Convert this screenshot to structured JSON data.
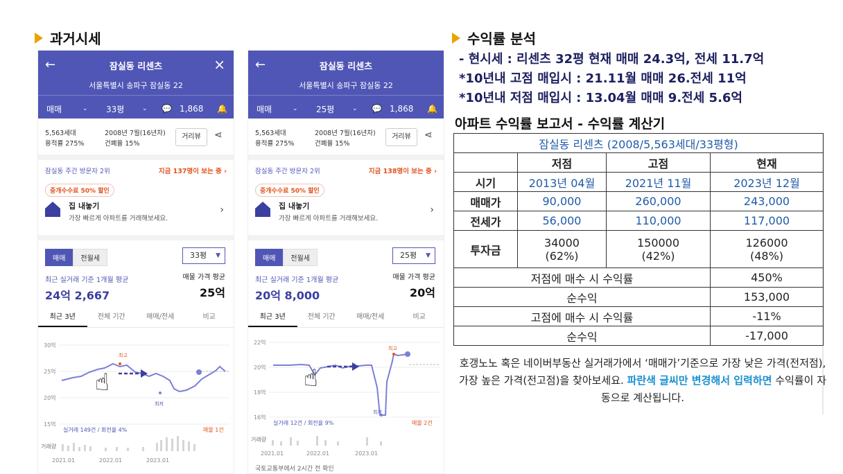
{
  "left_section": {
    "title": "과거시세"
  },
  "right_section": {
    "title": "수익률 분석",
    "bullets": [
      "-  현시세 : 리센츠 32평 현재 매매 24.3억, 전세 11.7억",
      "*10년내 고점 매입시 : 21.11월 매매 26.전세 11억",
      "*10년내 저점 매입시 : 13.04월 매매 9.전세 5.6억"
    ]
  },
  "phones": [
    {
      "title": "잠실동 리센츠",
      "address": "서울특별시 송파구 잠실동 22",
      "tab_trade": "매매",
      "tab_size": "33평",
      "comments": "1,868",
      "households": "5,563세대",
      "floor_ratio": "용적률 275%",
      "built": "2008년 7월(16년차)",
      "coverage": "건폐율 15%",
      "street_view": "거리뷰",
      "visitors": "잠실동 주간 방문자 2위",
      "watching": "지금 137명이 보는 중 ›",
      "fee_badge": "중개수수료 50% 할인",
      "sell_title": "집 내놓기",
      "sell_desc": "가장 빠르게 아파트를 거래해보세요.",
      "seg_on": "매매",
      "seg_off": "전월세",
      "dropdown": "33평",
      "avg_label": "최근 실거래 기준 1개월 평균",
      "avg_value": "24억 2,667",
      "ask_label": "매물 가격 평균",
      "ask_value": "25억",
      "period_tabs": [
        "최근 3년",
        "전체 기간",
        "매매/전세",
        "비교"
      ],
      "y_ticks": [
        "30억",
        "25억",
        "20억",
        "15억"
      ],
      "high_mark": "최고",
      "low_mark": "최저",
      "trades": "실거래 149건 / 회전율 4%",
      "listing": "매물 1건",
      "volume_label": "거래량",
      "x_ticks": [
        "2021.01",
        "2022.01",
        "2023.01"
      ],
      "footer": ""
    },
    {
      "title": "잠실동 리센츠",
      "address": "서울특별시 송파구 잠실동 22",
      "tab_trade": "매매",
      "tab_size": "25평",
      "comments": "1,868",
      "households": "5,563세대",
      "floor_ratio": "용적률 275%",
      "built": "2008년 7월(16년차)",
      "coverage": "건폐율 15%",
      "street_view": "거리뷰",
      "visitors": "잠실동 주간 방문자 2위",
      "watching": "지금 138명이 보는 중 ›",
      "fee_badge": "중개수수료 50% 할인",
      "sell_title": "집 내놓기",
      "sell_desc": "가장 빠르게 아파트를 거래해보세요.",
      "seg_on": "매매",
      "seg_off": "전월세",
      "dropdown": "25평",
      "avg_label": "최근 실거래 기준 1개월 평균",
      "avg_value": "20억 8,000",
      "ask_label": "매물 가격 평균",
      "ask_value": "20억",
      "period_tabs": [
        "최근 3년",
        "전체 기간",
        "매매/전세",
        "비교"
      ],
      "y_ticks": [
        "22억",
        "20억",
        "18억",
        "16억"
      ],
      "high_mark": "최고",
      "low_mark": "최저",
      "trades": "실거래 12건 / 회전율 9%",
      "listing": "매물 2건",
      "volume_label": "거래량",
      "x_ticks": [
        "2021.01",
        "2022.01",
        "2023.01"
      ],
      "footer": "국토교통부에서 2시간 전 확인"
    }
  ],
  "report": {
    "heading": "아파트 수익률 보고서 - 수익률 계산기",
    "caption": "잠실동 리센츠 (2008/5,563세대/33평형)",
    "col_headers": [
      "저점",
      "고점",
      "현재"
    ],
    "rows": [
      {
        "label": "시기",
        "values": [
          "2013년 04월",
          "2021년 11월",
          "2023년 12월"
        ]
      },
      {
        "label": "매매가",
        "values": [
          "90,000",
          "260,000",
          "243,000"
        ]
      },
      {
        "label": "전세가",
        "values": [
          "56,000",
          "110,000",
          "117,000"
        ]
      }
    ],
    "invest": {
      "label": "투자금",
      "values": [
        "34000",
        "150000",
        "126000"
      ],
      "pcts": [
        "(62%)",
        "(42%)",
        "(48%)"
      ]
    },
    "low_return_label": "저점에 매수 시 수익률",
    "low_return": "450%",
    "low_profit_label": "순수익",
    "low_profit": "153,000",
    "high_return_label": "고점에 매수 시 수익률",
    "high_return": "-11%",
    "high_profit_label": "순수익",
    "high_profit": "-17,000"
  },
  "note": {
    "part1": "호갱노노 혹은 네이버부동산 실거래가에서 ‘매매가’기준으로 가장 낮은 가격(전저점), 가장 높은 가격(전고점)을 찾아보세요. ",
    "highlight": "파란색 글씨만 변경해서 입력하면",
    "part2": " 수익률이 자동으로 계산됩니다."
  },
  "colors": {
    "header_purple": "#5056b5",
    "accent_orange": "#e8a400",
    "blue_value": "#1f5ba8",
    "hot_red": "#e2541e"
  }
}
